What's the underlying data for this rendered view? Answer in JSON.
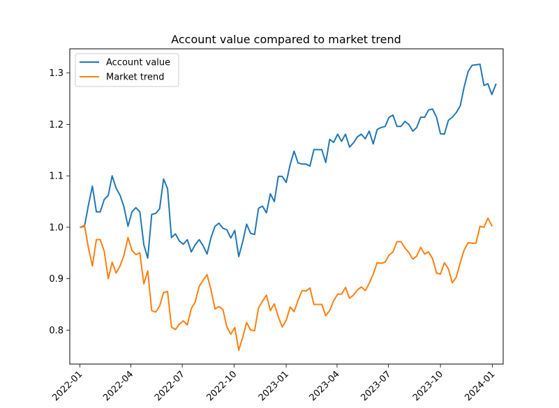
{
  "chart_data": {
    "type": "line",
    "title": "Account value compared to market trend",
    "xlabel": "",
    "ylabel": "",
    "x_ticks": [
      "2022-01",
      "2022-04",
      "2022-07",
      "2022-10",
      "2023-01",
      "2023-04",
      "2023-07",
      "2023-10",
      "2024-01"
    ],
    "x_range": [
      "2021-12-14",
      "2024-01-20"
    ],
    "y_ticks": [
      "0.8",
      "0.9",
      "1.0",
      "1.1",
      "1.2",
      "1.3"
    ],
    "ylim": [
      0.734,
      1.347
    ],
    "grid": false,
    "legend_position": "top-left",
    "series": [
      {
        "name": "Account value",
        "color": "#1f77b4",
        "points": [
          [
            "2022-01-02",
            1.0
          ],
          [
            "2022-01-09",
            1.002
          ],
          [
            "2022-01-16",
            1.043
          ],
          [
            "2022-01-23",
            1.08
          ],
          [
            "2022-01-30",
            1.03
          ],
          [
            "2022-02-06",
            1.03
          ],
          [
            "2022-02-13",
            1.054
          ],
          [
            "2022-02-20",
            1.062
          ],
          [
            "2022-02-27",
            1.1
          ],
          [
            "2022-03-06",
            1.076
          ],
          [
            "2022-03-13",
            1.062
          ],
          [
            "2022-03-20",
            1.039
          ],
          [
            "2022-03-27",
            1.002
          ],
          [
            "2022-04-03",
            1.03
          ],
          [
            "2022-04-10",
            1.038
          ],
          [
            "2022-04-17",
            1.03
          ],
          [
            "2022-04-24",
            0.966
          ],
          [
            "2022-05-01",
            0.94
          ],
          [
            "2022-05-08",
            1.025
          ],
          [
            "2022-05-15",
            1.027
          ],
          [
            "2022-05-22",
            1.036
          ],
          [
            "2022-05-29",
            1.094
          ],
          [
            "2022-06-05",
            1.075
          ],
          [
            "2022-06-12",
            0.98
          ],
          [
            "2022-06-19",
            0.987
          ],
          [
            "2022-06-26",
            0.973
          ],
          [
            "2022-07-03",
            0.967
          ],
          [
            "2022-07-10",
            0.976
          ],
          [
            "2022-07-17",
            0.952
          ],
          [
            "2022-07-24",
            0.966
          ],
          [
            "2022-07-31",
            0.976
          ],
          [
            "2022-08-07",
            0.964
          ],
          [
            "2022-08-14",
            0.948
          ],
          [
            "2022-08-21",
            0.98
          ],
          [
            "2022-08-28",
            1.002
          ],
          [
            "2022-09-04",
            1.008
          ],
          [
            "2022-09-11",
            0.998
          ],
          [
            "2022-09-18",
            0.995
          ],
          [
            "2022-09-25",
            0.979
          ],
          [
            "2022-10-02",
            0.994
          ],
          [
            "2022-10-09",
            0.943
          ],
          [
            "2022-10-16",
            0.972
          ],
          [
            "2022-10-23",
            1.006
          ],
          [
            "2022-10-30",
            0.988
          ],
          [
            "2022-11-06",
            0.986
          ],
          [
            "2022-11-13",
            1.037
          ],
          [
            "2022-11-20",
            1.041
          ],
          [
            "2022-11-27",
            1.028
          ],
          [
            "2022-12-04",
            1.065
          ],
          [
            "2022-12-11",
            1.05
          ],
          [
            "2022-12-18",
            1.099
          ],
          [
            "2022-12-25",
            1.099
          ],
          [
            "2023-01-01",
            1.087
          ],
          [
            "2023-01-08",
            1.122
          ],
          [
            "2023-01-15",
            1.148
          ],
          [
            "2023-01-22",
            1.125
          ],
          [
            "2023-01-29",
            1.123
          ],
          [
            "2023-02-05",
            1.123
          ],
          [
            "2023-02-12",
            1.119
          ],
          [
            "2023-02-19",
            1.151
          ],
          [
            "2023-02-26",
            1.151
          ],
          [
            "2023-03-05",
            1.151
          ],
          [
            "2023-03-12",
            1.126
          ],
          [
            "2023-03-19",
            1.171
          ],
          [
            "2023-03-26",
            1.165
          ],
          [
            "2023-04-02",
            1.181
          ],
          [
            "2023-04-09",
            1.167
          ],
          [
            "2023-04-16",
            1.181
          ],
          [
            "2023-04-23",
            1.156
          ],
          [
            "2023-04-30",
            1.164
          ],
          [
            "2023-05-07",
            1.176
          ],
          [
            "2023-05-14",
            1.181
          ],
          [
            "2023-05-21",
            1.172
          ],
          [
            "2023-05-28",
            1.187
          ],
          [
            "2023-06-04",
            1.162
          ],
          [
            "2023-06-11",
            1.19
          ],
          [
            "2023-06-18",
            1.194
          ],
          [
            "2023-06-25",
            1.196
          ],
          [
            "2023-07-02",
            1.214
          ],
          [
            "2023-07-09",
            1.218
          ],
          [
            "2023-07-16",
            1.196
          ],
          [
            "2023-07-23",
            1.196
          ],
          [
            "2023-07-30",
            1.206
          ],
          [
            "2023-08-06",
            1.2
          ],
          [
            "2023-08-13",
            1.187
          ],
          [
            "2023-08-20",
            1.194
          ],
          [
            "2023-08-27",
            1.214
          ],
          [
            "2023-09-03",
            1.214
          ],
          [
            "2023-09-10",
            1.228
          ],
          [
            "2023-09-17",
            1.23
          ],
          [
            "2023-09-24",
            1.214
          ],
          [
            "2023-10-01",
            1.182
          ],
          [
            "2023-10-08",
            1.181
          ],
          [
            "2023-10-15",
            1.208
          ],
          [
            "2023-10-22",
            1.214
          ],
          [
            "2023-10-29",
            1.223
          ],
          [
            "2023-11-05",
            1.236
          ],
          [
            "2023-11-12",
            1.273
          ],
          [
            "2023-11-19",
            1.303
          ],
          [
            "2023-11-26",
            1.315
          ],
          [
            "2023-12-03",
            1.316
          ],
          [
            "2023-12-10",
            1.317
          ],
          [
            "2023-12-17",
            1.276
          ],
          [
            "2023-12-24",
            1.279
          ],
          [
            "2023-12-31",
            1.258
          ],
          [
            "2024-01-07",
            1.278
          ]
        ]
      },
      {
        "name": "Market trend",
        "color": "#ff7f0e",
        "points": [
          [
            "2022-01-02",
            1.0
          ],
          [
            "2022-01-09",
            1.004
          ],
          [
            "2022-01-16",
            0.96
          ],
          [
            "2022-01-23",
            0.925
          ],
          [
            "2022-01-30",
            0.976
          ],
          [
            "2022-02-06",
            0.976
          ],
          [
            "2022-02-13",
            0.953
          ],
          [
            "2022-02-20",
            0.9
          ],
          [
            "2022-02-27",
            0.932
          ],
          [
            "2022-03-06",
            0.911
          ],
          [
            "2022-03-13",
            0.925
          ],
          [
            "2022-03-20",
            0.946
          ],
          [
            "2022-03-27",
            0.98
          ],
          [
            "2022-04-03",
            0.955
          ],
          [
            "2022-04-10",
            0.947
          ],
          [
            "2022-04-17",
            0.95
          ],
          [
            "2022-04-24",
            0.89
          ],
          [
            "2022-05-01",
            0.915
          ],
          [
            "2022-05-08",
            0.838
          ],
          [
            "2022-05-15",
            0.835
          ],
          [
            "2022-05-22",
            0.847
          ],
          [
            "2022-05-29",
            0.873
          ],
          [
            "2022-06-05",
            0.875
          ],
          [
            "2022-06-12",
            0.806
          ],
          [
            "2022-06-19",
            0.801
          ],
          [
            "2022-06-26",
            0.812
          ],
          [
            "2022-07-03",
            0.818
          ],
          [
            "2022-07-10",
            0.81
          ],
          [
            "2022-07-17",
            0.842
          ],
          [
            "2022-07-24",
            0.855
          ],
          [
            "2022-07-31",
            0.885
          ],
          [
            "2022-08-07",
            0.897
          ],
          [
            "2022-08-14",
            0.908
          ],
          [
            "2022-08-21",
            0.878
          ],
          [
            "2022-08-28",
            0.841
          ],
          [
            "2022-09-04",
            0.846
          ],
          [
            "2022-09-11",
            0.84
          ],
          [
            "2022-09-18",
            0.806
          ],
          [
            "2022-09-25",
            0.792
          ],
          [
            "2022-10-02",
            0.805
          ],
          [
            "2022-10-09",
            0.761
          ],
          [
            "2022-10-16",
            0.786
          ],
          [
            "2022-10-23",
            0.815
          ],
          [
            "2022-10-30",
            0.8
          ],
          [
            "2022-11-06",
            0.799
          ],
          [
            "2022-11-13",
            0.843
          ],
          [
            "2022-11-20",
            0.856
          ],
          [
            "2022-11-27",
            0.868
          ],
          [
            "2022-12-04",
            0.838
          ],
          [
            "2022-12-11",
            0.851
          ],
          [
            "2022-12-18",
            0.826
          ],
          [
            "2022-12-25",
            0.806
          ],
          [
            "2023-01-01",
            0.819
          ],
          [
            "2023-01-08",
            0.845
          ],
          [
            "2023-01-15",
            0.836
          ],
          [
            "2023-01-22",
            0.858
          ],
          [
            "2023-01-29",
            0.877
          ],
          [
            "2023-02-05",
            0.876
          ],
          [
            "2023-02-12",
            0.882
          ],
          [
            "2023-02-19",
            0.85
          ],
          [
            "2023-02-26",
            0.85
          ],
          [
            "2023-03-05",
            0.85
          ],
          [
            "2023-03-12",
            0.828
          ],
          [
            "2023-03-19",
            0.838
          ],
          [
            "2023-03-26",
            0.857
          ],
          [
            "2023-04-02",
            0.87
          ],
          [
            "2023-04-09",
            0.87
          ],
          [
            "2023-04-16",
            0.883
          ],
          [
            "2023-04-23",
            0.862
          ],
          [
            "2023-04-30",
            0.868
          ],
          [
            "2023-05-07",
            0.878
          ],
          [
            "2023-05-14",
            0.884
          ],
          [
            "2023-05-21",
            0.877
          ],
          [
            "2023-05-28",
            0.891
          ],
          [
            "2023-06-04",
            0.909
          ],
          [
            "2023-06-11",
            0.931
          ],
          [
            "2023-06-18",
            0.93
          ],
          [
            "2023-06-25",
            0.932
          ],
          [
            "2023-07-02",
            0.946
          ],
          [
            "2023-07-09",
            0.952
          ],
          [
            "2023-07-16",
            0.972
          ],
          [
            "2023-07-23",
            0.972
          ],
          [
            "2023-07-30",
            0.96
          ],
          [
            "2023-08-06",
            0.951
          ],
          [
            "2023-08-13",
            0.938
          ],
          [
            "2023-08-20",
            0.944
          ],
          [
            "2023-08-27",
            0.961
          ],
          [
            "2023-09-03",
            0.948
          ],
          [
            "2023-09-10",
            0.952
          ],
          [
            "2023-09-17",
            0.939
          ],
          [
            "2023-09-24",
            0.911
          ],
          [
            "2023-10-01",
            0.909
          ],
          [
            "2023-10-08",
            0.931
          ],
          [
            "2023-10-15",
            0.919
          ],
          [
            "2023-10-22",
            0.892
          ],
          [
            "2023-10-29",
            0.903
          ],
          [
            "2023-11-05",
            0.931
          ],
          [
            "2023-11-12",
            0.956
          ],
          [
            "2023-11-19",
            0.97
          ],
          [
            "2023-11-26",
            0.969
          ],
          [
            "2023-12-03",
            0.969
          ],
          [
            "2023-12-10",
            1.002
          ],
          [
            "2023-12-17",
            1.0
          ],
          [
            "2023-12-24",
            1.018
          ],
          [
            "2023-12-31",
            1.003
          ]
        ]
      }
    ]
  }
}
